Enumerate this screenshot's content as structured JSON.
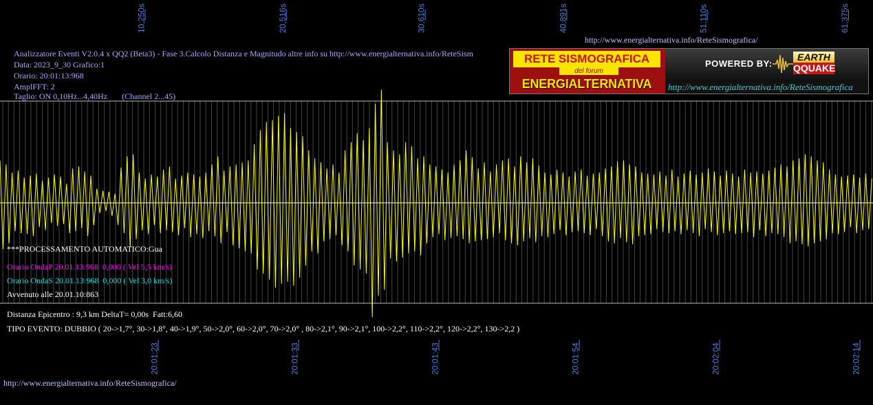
{
  "header": {
    "top_url": "http://www.energialternativa.info/ReteSismografica/",
    "info_lines": [
      "Analizzatore Eventi V2.0.4 x QQ2 (Beta3) - Fase 3.Calcolo Distanza e Magnitudo altre info su http://www.energialternativa.info/ReteSism",
      "Data: 2023_9_30 Grafico:1",
      "Orario: 20:01:13:968",
      "AmplFFT: 2",
      "Taglio: ON 0,10Hz...4,40Hz       (Channel 2...45)"
    ]
  },
  "logo": {
    "title": "RETE SISMOGRAFICA",
    "subtitle": "del forum",
    "name": "ENERGIALTERNATIVA",
    "powered_by": "POWERED BY:",
    "brand_top": "EARTH",
    "brand_bottom": "QQUAKE",
    "url": "http://www.energialternativa.info/ReteSismografica"
  },
  "overlay": {
    "processing": "***PROCESSAMENTO AUTOMATICO:Gua",
    "p_wave": "Orario OndaP 20.01.13:968  0,000 ( Vel 5,5 km/s)",
    "s_wave": "Orario OndaS 20.01.13:968  0,000 ( Vel 3,0 km/s)",
    "occurred": "Avvenuto alle 20.01.10:863"
  },
  "results": {
    "distance": "Distanza Epicentro : 9,3 km DeltaT= 0,00s  Fatt:6,60",
    "event_type": "TIPO EVENTO: DUBBIO ( 20->1,7°, 30->1,8°, 40->1,9°, 50->2,0°, 60->2,0°, 70->2,0° , 80->2,1°, 90->2,1°, 100->2,2°, 110->2,2°, 120->2,2°, 130->2,2 )"
  },
  "footer": {
    "url": "http://www.energialternativa.info/ReteSismografica/"
  },
  "colors": {
    "background": "#000000",
    "trace": "#ffff00",
    "tick": "#4a80e0",
    "grid": "#454545",
    "frame": "#bdbdbd",
    "baseline": "#ffffff",
    "info_text": "#aaaaff",
    "p_wave_text": "#ff00ff",
    "s_wave_text": "#00e5e5"
  },
  "chart_data": {
    "type": "line",
    "xlim": [
      0,
      63.45
    ],
    "ylim": [
      -1,
      1
    ],
    "grid": true,
    "x_ticks_top": [
      {
        "value": 10.25,
        "label": "10,250s"
      },
      {
        "value": 20.516,
        "label": "20,516s"
      },
      {
        "value": 30.61,
        "label": "30,610s"
      },
      {
        "value": 40.891,
        "label": "40,891s"
      },
      {
        "value": 51.11,
        "label": "51,110s"
      },
      {
        "value": 61.375,
        "label": "61,375s"
      }
    ],
    "x_ticks_bottom": [
      {
        "value": 11.2,
        "label": "20:01:23"
      },
      {
        "value": 21.4,
        "label": "20:01:33"
      },
      {
        "value": 31.6,
        "label": "20:01:43"
      },
      {
        "value": 41.8,
        "label": "20:01:54"
      },
      {
        "value": 52.0,
        "label": "20:02:04"
      },
      {
        "value": 62.2,
        "label": "20:02:14"
      }
    ],
    "series": [
      {
        "x_start": 0,
        "x_step": 0.22,
        "values": [
          0.42,
          -0.46,
          0.38,
          -0.4,
          0.3,
          -0.28,
          0.32,
          -0.3,
          0.25,
          -0.31,
          0.27,
          -0.33,
          0.29,
          -0.24,
          0.22,
          -0.27,
          0.25,
          -0.2,
          0.28,
          -0.23,
          0.26,
          -0.21,
          0.19,
          -0.3,
          0.34,
          -0.28,
          0.36,
          -0.25,
          0.31,
          -0.33,
          0.27,
          -0.22,
          0.14,
          -0.1,
          0.12,
          -0.08,
          0.11,
          -0.13,
          0.09,
          -0.22,
          0.35,
          -0.3,
          0.46,
          -0.44,
          0.48,
          -0.36,
          0.3,
          -0.27,
          0.24,
          -0.31,
          0.28,
          -0.22,
          0.26,
          -0.3,
          0.33,
          -0.27,
          0.36,
          -0.29,
          0.24,
          -0.32,
          0.27,
          -0.25,
          0.3,
          -0.34,
          0.28,
          -0.31,
          0.26,
          -0.35,
          0.3,
          -0.28,
          0.38,
          -0.33,
          0.46,
          -0.4,
          0.32,
          -0.29,
          0.36,
          -0.42,
          0.38,
          -0.45,
          0.4,
          -0.48,
          0.42,
          -0.5,
          0.58,
          -0.66,
          0.72,
          -0.7,
          0.8,
          -0.76,
          0.82,
          -0.84,
          0.86,
          -0.8,
          0.89,
          -0.78,
          0.74,
          -0.82,
          0.7,
          -0.74,
          0.66,
          -0.62,
          0.52,
          -0.48,
          0.44,
          -0.5,
          0.4,
          -0.38,
          0.34,
          -0.36,
          0.38,
          -0.32,
          0.3,
          -0.42,
          0.52,
          -0.48,
          0.6,
          -0.62,
          0.69,
          -0.66,
          0.62,
          -0.7,
          0.74,
          -1.13,
          0.98,
          -0.92,
          1.12,
          -0.86,
          0.6,
          -0.55,
          0.52,
          -0.58,
          0.48,
          -0.54,
          0.6,
          -0.5,
          0.56,
          -0.48,
          0.44,
          -0.52,
          0.46,
          -0.4,
          0.38,
          -0.34,
          0.36,
          -0.31,
          0.33,
          -0.37,
          0.3,
          -0.35,
          0.38,
          -0.33,
          0.42,
          -0.36,
          0.52,
          -0.4,
          0.45,
          -0.38,
          0.34,
          -0.37,
          0.4,
          -0.36,
          0.31,
          -0.34,
          0.38,
          -0.3,
          0.42,
          -0.37,
          0.44,
          -0.4,
          0.36,
          -0.42,
          0.46,
          -0.38,
          0.4,
          -0.35,
          0.44,
          -0.39,
          0.37,
          -0.33,
          0.3,
          -0.34,
          0.28,
          -0.31,
          0.33,
          -0.27,
          0.3,
          -0.32,
          0.26,
          -0.29,
          0.31,
          -0.28,
          0.33,
          -0.3,
          0.27,
          -0.32,
          0.29,
          -0.26,
          0.3,
          -0.33,
          0.34,
          -0.38,
          0.36,
          -0.4,
          0.41,
          -0.35,
          0.42,
          -0.39,
          0.38,
          -0.41,
          0.36,
          -0.33,
          0.3,
          -0.32,
          0.29,
          -0.31,
          0.28,
          -0.26,
          0.31,
          -0.29,
          0.27,
          -0.3,
          0.33,
          -0.28,
          0.26,
          -0.31,
          0.29,
          -0.27,
          0.32,
          -0.3,
          0.28,
          -0.33,
          0.3,
          -0.26,
          0.34,
          -0.29,
          0.31,
          -0.32,
          0.27,
          -0.3,
          0.32,
          -0.28,
          0.29,
          -0.31,
          0.26,
          -0.3,
          0.33,
          -0.29,
          0.3,
          -0.34,
          0.31,
          -0.27,
          0.29,
          -0.33,
          0.32,
          -0.3,
          0.35,
          -0.31,
          0.38,
          -0.34,
          0.36,
          -0.4,
          0.42,
          -0.38,
          0.44,
          -0.41,
          0.48,
          -0.43,
          0.46,
          -0.4,
          0.42,
          -0.38,
          0.4,
          -0.36,
          0.33,
          -0.3,
          0.28,
          -0.31,
          0.26,
          -0.29,
          0.27,
          -0.24,
          0.28,
          -0.3,
          0.25,
          -0.27,
          0.29,
          -0.26,
          0.24
        ]
      }
    ]
  }
}
